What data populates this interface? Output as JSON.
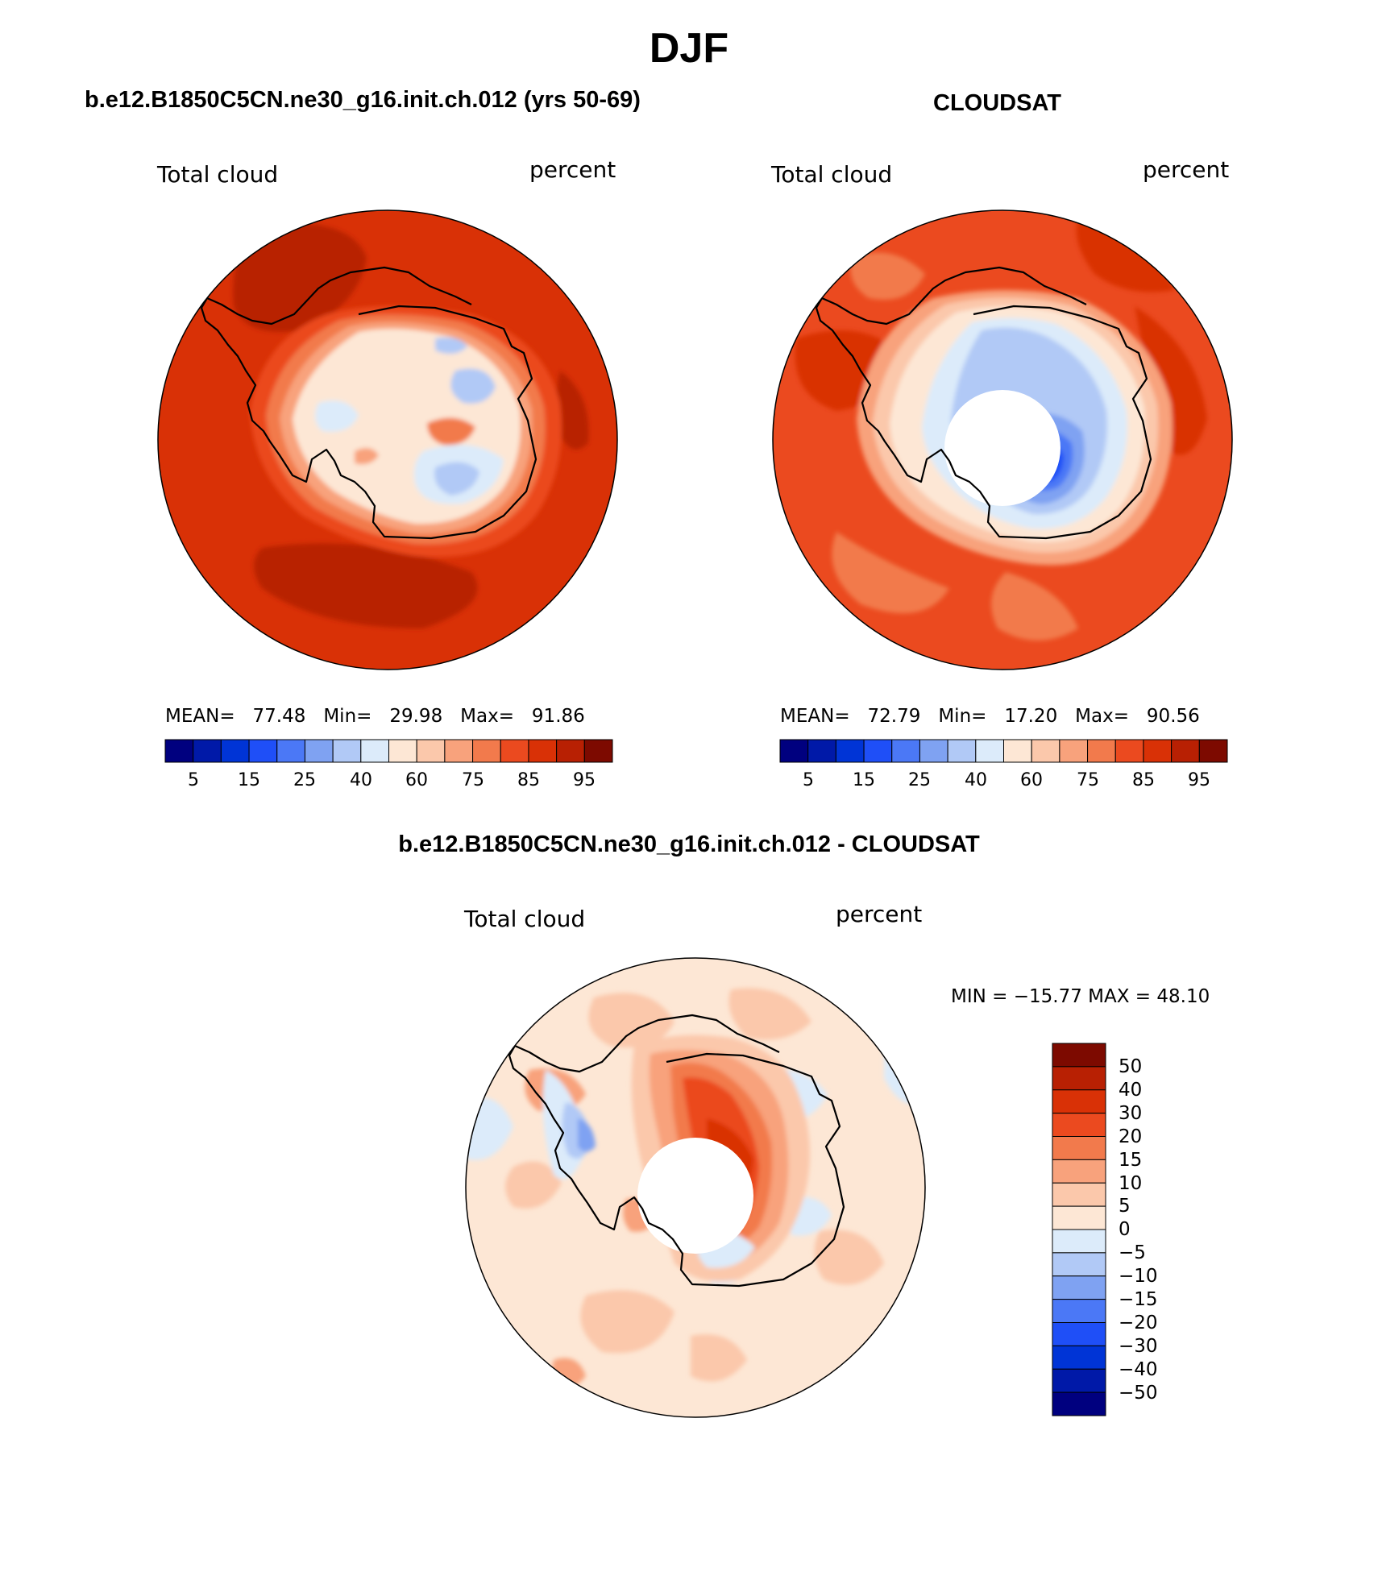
{
  "figure": {
    "title": "DJF",
    "bottom_title": "b.e12.B1850C5CN.ne30_g16.init.ch.012 - CLOUDSAT"
  },
  "colors": {
    "abs_palette": [
      "#00007f",
      "#0019a8",
      "#0034d6",
      "#1f4ff7",
      "#4b78f6",
      "#7fa2f2",
      "#b1c9f6",
      "#dcebfa",
      "#fde7d5",
      "#fbc8ab",
      "#f8a27c",
      "#f27a4c",
      "#eb4a1f",
      "#d93106",
      "#b82003",
      "#7d0a00"
    ],
    "diff_palette": [
      "#00007f",
      "#0019a8",
      "#0034d6",
      "#1f4ff7",
      "#4b78f6",
      "#7fa2f2",
      "#b1c9f6",
      "#dcebfa",
      "#fde7d5",
      "#fbc8ab",
      "#f8a27c",
      "#f27a4c",
      "#eb4a1f",
      "#d93106",
      "#b82003",
      "#7d0a00"
    ],
    "coast": "#000000",
    "missing": "#ffffff"
  },
  "panels": [
    {
      "title": "b.e12.B1850C5CN.ne30_g16.init.ch.012 (yrs 50-69)",
      "left_label": "Total cloud",
      "right_label": "percent",
      "mean_label": "MEAN=",
      "mean": "77.48",
      "min_label": "Min=",
      "min": "29.98",
      "max_label": "Max=",
      "max": "91.86",
      "colorbar_ticks": [
        "5",
        "15",
        "25",
        "40",
        "60",
        "75",
        "85",
        "95"
      ]
    },
    {
      "title": "CLOUDSAT",
      "left_label": "Total cloud",
      "right_label": "percent",
      "mean_label": "MEAN=",
      "mean": "72.79",
      "min_label": "Min=",
      "min": "17.20",
      "max_label": "Max=",
      "max": "90.56",
      "colorbar_ticks": [
        "5",
        "15",
        "25",
        "40",
        "60",
        "75",
        "85",
        "95"
      ]
    }
  ],
  "difference": {
    "left_label": "Total cloud",
    "right_label": "percent",
    "minmax": "MIN = −15.77 MAX =  48.10",
    "colorbar_labels": [
      "50",
      "40",
      "30",
      "20",
      "15",
      "10",
      "5",
      "0",
      "−5",
      "−10",
      "−15",
      "−20",
      "−30",
      "−40",
      "−50"
    ]
  }
}
